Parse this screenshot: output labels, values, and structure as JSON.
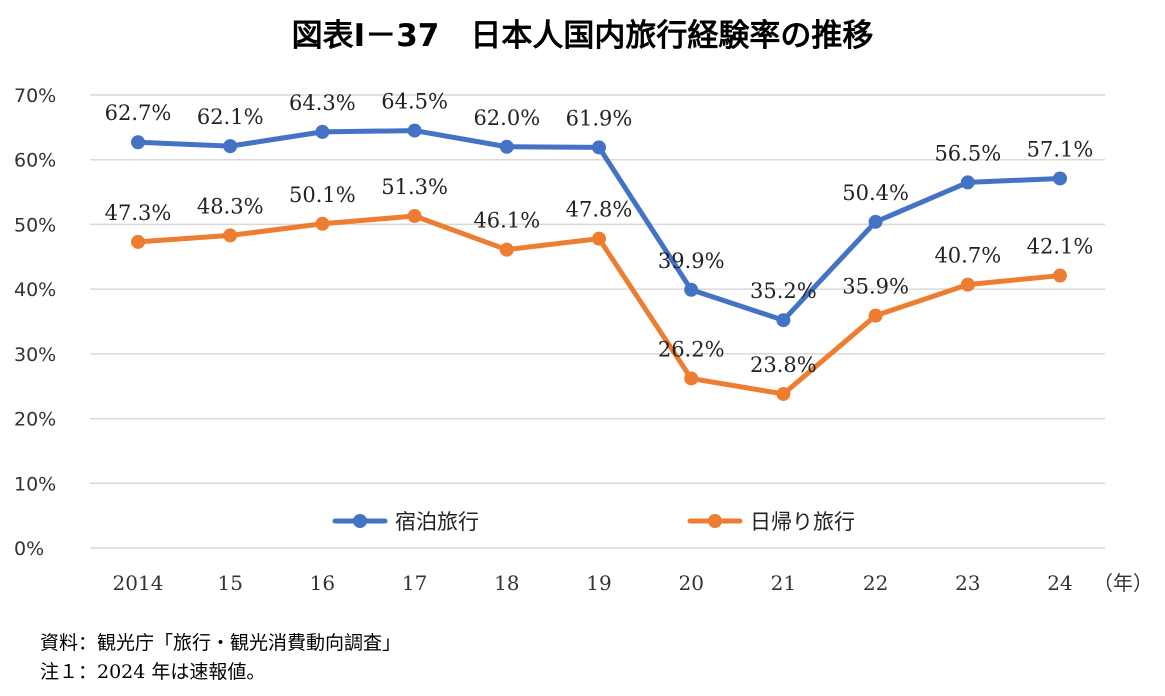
{
  "title": "図表Ⅰ－37　日本人国内旅行経験率の推移",
  "chart_data": {
    "type": "line",
    "categories": [
      "2014",
      "15",
      "16",
      "17",
      "18",
      "19",
      "20",
      "21",
      "22",
      "23",
      "24"
    ],
    "x_unit_label": "（年）",
    "y_ticks": [
      "0%",
      "10%",
      "20%",
      "30%",
      "40%",
      "50%",
      "60%",
      "70%"
    ],
    "ylim": [
      0,
      70
    ],
    "grid": true,
    "legend_position": "bottom-inside",
    "series": [
      {
        "name": "宿泊旅行",
        "color": "#4472C4",
        "values": [
          62.7,
          62.1,
          64.3,
          64.5,
          62.0,
          61.9,
          39.9,
          35.2,
          50.4,
          56.5,
          57.1
        ],
        "labels": [
          "62.7%",
          "62.1%",
          "64.3%",
          "64.5%",
          "62.0%",
          "61.9%",
          "39.9%",
          "35.2%",
          "50.4%",
          "56.5%",
          "57.1%"
        ]
      },
      {
        "name": "日帰り旅行",
        "color": "#ED7D31",
        "values": [
          47.3,
          48.3,
          50.1,
          51.3,
          46.1,
          47.8,
          26.2,
          23.8,
          35.9,
          40.7,
          42.1
        ],
        "labels": [
          "47.3%",
          "48.3%",
          "50.1%",
          "51.3%",
          "46.1%",
          "47.8%",
          "26.2%",
          "23.8%",
          "35.9%",
          "40.7%",
          "42.1%"
        ]
      }
    ]
  },
  "notes": {
    "source": "資料：観光庁「旅行・観光消費動向調査」",
    "note1": "注１：2024 年は速報値。"
  }
}
